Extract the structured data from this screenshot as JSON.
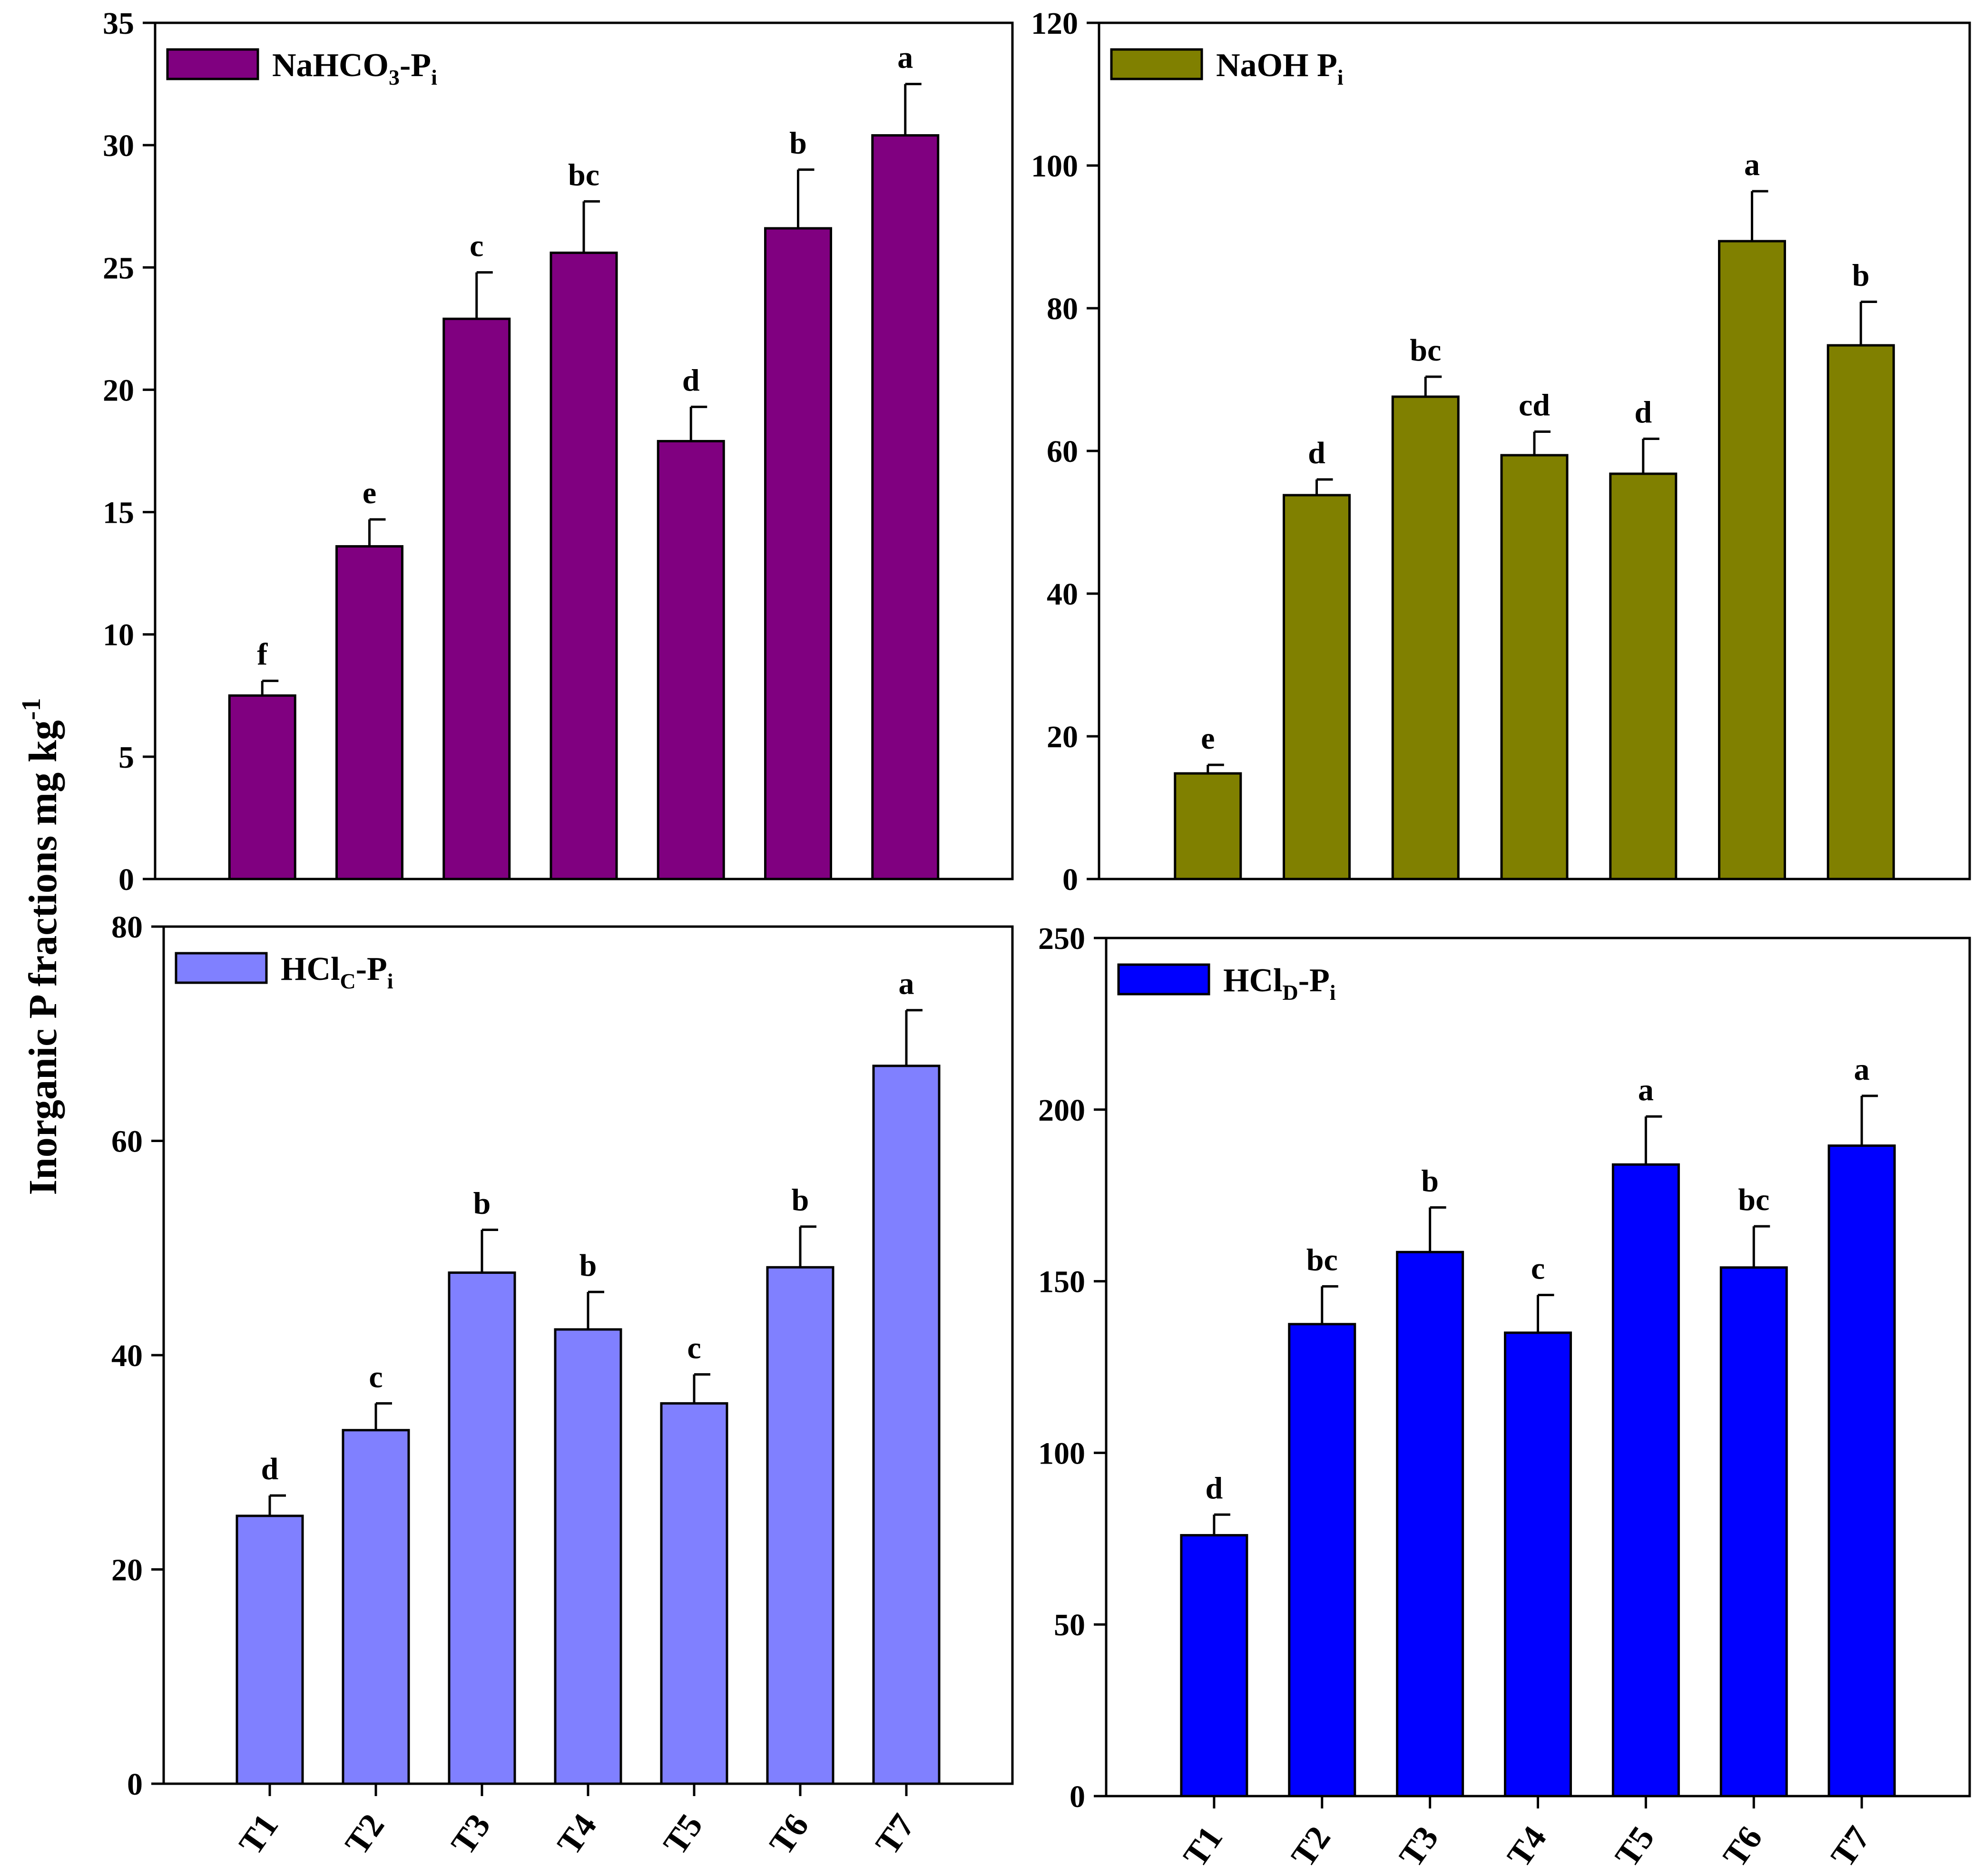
{
  "y_axis_label": "Inorganic P fractions mg kg",
  "y_axis_label_sup": "-1",
  "categories": [
    "T1",
    "T2",
    "T3",
    "T4",
    "T5",
    "T6",
    "T7"
  ],
  "chart_data": [
    {
      "type": "bar",
      "legend": {
        "main": "NaHCO",
        "sub1": "3",
        "mid": "-P",
        "sub2": "i"
      },
      "color": "#800080",
      "categories": [
        "T1",
        "T2",
        "T3",
        "T4",
        "T5",
        "T6",
        "T7"
      ],
      "values": [
        7.5,
        13.6,
        22.9,
        25.6,
        17.9,
        26.6,
        30.4
      ],
      "errors": [
        0.6,
        1.1,
        1.9,
        2.1,
        1.4,
        2.4,
        2.1
      ],
      "letters": [
        "f",
        "e",
        "c",
        "bc",
        "d",
        "b",
        "a"
      ],
      "ylim": [
        0,
        35
      ],
      "ticks": [
        0,
        5,
        10,
        15,
        20,
        25,
        30,
        35
      ],
      "legend_position": "top-left"
    },
    {
      "type": "bar",
      "legend": {
        "main": "NaOH P",
        "sub1": "",
        "mid": "",
        "sub2": "i"
      },
      "color": "#808000",
      "categories": [
        "T1",
        "T2",
        "T3",
        "T4",
        "T5",
        "T6",
        "T7"
      ],
      "values": [
        14.8,
        53.8,
        67.6,
        59.4,
        56.8,
        89.4,
        74.8
      ],
      "errors": [
        1.2,
        2.2,
        2.8,
        3.3,
        4.9,
        7.0,
        6.1
      ],
      "letters": [
        "e",
        "d",
        "bc",
        "cd",
        "d",
        "a",
        "b"
      ],
      "ylim": [
        0,
        120
      ],
      "ticks": [
        0,
        20,
        40,
        60,
        80,
        100,
        120
      ],
      "legend_position": "top-left"
    },
    {
      "type": "bar",
      "legend": {
        "main": "HCl",
        "sub1": "C",
        "mid": "-P",
        "sub2": "i"
      },
      "color": "#8080FF",
      "categories": [
        "T1",
        "T2",
        "T3",
        "T4",
        "T5",
        "T6",
        "T7"
      ],
      "values": [
        25.0,
        33.0,
        47.7,
        42.4,
        35.5,
        48.2,
        67.0
      ],
      "errors": [
        1.9,
        2.5,
        4.0,
        3.5,
        2.7,
        3.8,
        5.2
      ],
      "letters": [
        "d",
        "c",
        "b",
        "b",
        "c",
        "b",
        "a"
      ],
      "ylim": [
        0,
        80
      ],
      "ticks": [
        0,
        20,
        40,
        60,
        80
      ],
      "legend_position": "top-left"
    },
    {
      "type": "bar",
      "legend": {
        "main": "HCl",
        "sub1": "D",
        "mid": "-P",
        "sub2": "i"
      },
      "color": "#0000FF",
      "categories": [
        "T1",
        "T2",
        "T3",
        "T4",
        "T5",
        "T6",
        "T7"
      ],
      "values": [
        76.0,
        137.5,
        158.5,
        135.0,
        184.0,
        154.0,
        189.5
      ],
      "errors": [
        6.0,
        11.0,
        13.0,
        11.0,
        14.0,
        12.0,
        14.5
      ],
      "letters": [
        "d",
        "bc",
        "b",
        "c",
        "a",
        "bc",
        "a"
      ],
      "ylim": [
        0,
        250
      ],
      "ticks": [
        0,
        50,
        100,
        150,
        200,
        250
      ],
      "legend_position": "top-left"
    }
  ]
}
